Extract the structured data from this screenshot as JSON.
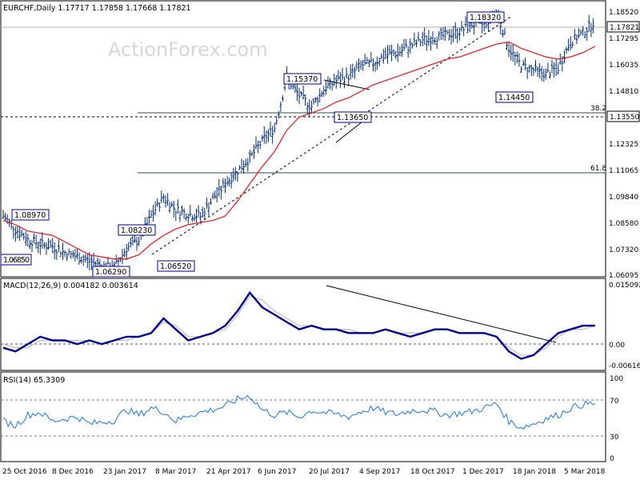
{
  "header": {
    "main_title": "EURCHF,Daily  1.17717 1.17858 1.17668 1.17821",
    "macd_title": "MACD(12,26,9) 0.004182 0.003614",
    "rsi_title": "RSI(14) 65.3309",
    "watermark": "ActionForex.com"
  },
  "chart_data": [
    {
      "type": "line",
      "name": "price",
      "y_ticks": [
        "1.18520",
        "1.17295",
        "1.16035",
        "1.14810",
        "1.13550",
        "1.12325",
        "1.11065",
        "1.09840",
        "1.08580",
        "1.07320",
        "1.06095"
      ],
      "ylim": [
        1.0595,
        1.186
      ],
      "current_price_label": "1.17821",
      "current_price": 1.17821,
      "level_label": "1.13550",
      "level_value": 1.1355,
      "fib_levels": [
        {
          "label": "38.2",
          "value": 1.137
        },
        {
          "label": "61.8",
          "value": 1.1107
        }
      ],
      "annotations": [
        {
          "label": "1.08970",
          "value": 1.0897
        },
        {
          "label": "1.06850",
          "value": 1.0685
        },
        {
          "label": "1.08230",
          "value": 1.0823
        },
        {
          "label": "1.06290",
          "value": 1.0629
        },
        {
          "label": "1.06520",
          "value": 1.0652
        },
        {
          "label": "1.15370",
          "value": 1.1537
        },
        {
          "label": "1.13650",
          "value": 1.1365
        },
        {
          "label": "1.18320",
          "value": 1.1832
        },
        {
          "label": "1.14450",
          "value": 1.1445
        }
      ],
      "x_ticks": [
        "25 Oct 2016",
        "8 Dec 2016",
        "23 Jan 2017",
        "8 Mar 2017",
        "21 Apr 2017",
        "6 Jun 2017",
        "20 Jul 2017",
        "4 Sep 2017",
        "18 Oct 2017",
        "1 Dec 2017",
        "18 Jan 2018",
        "5 Mar 2018"
      ],
      "series": [
        {
          "values": [
            1.087,
            1.081,
            1.076,
            1.074,
            1.073,
            1.07,
            1.068,
            1.066,
            1.064,
            1.063,
            1.072,
            1.076,
            1.087,
            1.096,
            1.09,
            1.088,
            1.087,
            1.095,
            1.102,
            1.108,
            1.114,
            1.122,
            1.128,
            1.151,
            1.143,
            1.138,
            1.146,
            1.15,
            1.152,
            1.157,
            1.158,
            1.162,
            1.163,
            1.166,
            1.169,
            1.17,
            1.171,
            1.173,
            1.176,
            1.176,
            1.182,
            1.165,
            1.157,
            1.155,
            1.153,
            1.156,
            1.168,
            1.172,
            1.178
          ]
        },
        {
          "values": [
            1.085,
            1.083,
            1.08,
            1.079,
            1.078,
            1.075,
            1.072,
            1.069,
            1.068,
            1.067,
            1.067,
            1.069,
            1.074,
            1.078,
            1.081,
            1.083,
            1.084,
            1.085,
            1.087,
            1.094,
            1.102,
            1.11,
            1.117,
            1.127,
            1.133,
            1.135,
            1.137,
            1.14,
            1.142,
            1.145,
            1.148,
            1.15,
            1.152,
            1.154,
            1.156,
            1.158,
            1.16,
            1.161,
            1.163,
            1.165,
            1.167,
            1.168,
            1.165,
            1.163,
            1.161,
            1.16,
            1.161,
            1.163,
            1.166
          ]
        }
      ]
    },
    {
      "type": "line",
      "name": "macd",
      "y_ticks": [
        "0.015092",
        "0.00",
        "-0.006163"
      ],
      "ylim": [
        -0.0075,
        0.016
      ],
      "series": [
        {
          "values": [
            -0.002,
            -0.003,
            -0.001,
            0.001,
            0.0,
            0.0,
            -0.001,
            0.0,
            -0.001,
            0.0,
            0.001,
            0.001,
            0.002,
            0.006,
            0.003,
            0.0,
            0.001,
            0.002,
            0.004,
            0.008,
            0.013,
            0.009,
            0.007,
            0.005,
            0.003,
            0.004,
            0.003,
            0.003,
            0.002,
            0.002,
            0.002,
            0.003,
            0.002,
            0.001,
            0.002,
            0.003,
            0.003,
            0.002,
            0.002,
            0.002,
            0.001,
            -0.003,
            -0.005,
            -0.004,
            -0.001,
            0.002,
            0.003,
            0.004,
            0.004
          ]
        },
        {
          "values": [
            -0.001,
            -0.002,
            -0.002,
            0.0,
            0.0,
            0.0,
            0.0,
            0.0,
            -0.001,
            0.0,
            0.0,
            0.001,
            0.002,
            0.005,
            0.004,
            0.001,
            0.001,
            0.002,
            0.003,
            0.007,
            0.012,
            0.011,
            0.008,
            0.006,
            0.004,
            0.004,
            0.003,
            0.003,
            0.003,
            0.002,
            0.002,
            0.003,
            0.002,
            0.002,
            0.002,
            0.003,
            0.003,
            0.002,
            0.002,
            0.002,
            0.001,
            -0.002,
            -0.004,
            -0.004,
            -0.002,
            0.001,
            0.003,
            0.003,
            0.004
          ]
        }
      ]
    },
    {
      "type": "line",
      "name": "rsi",
      "y_ticks": [
        "70",
        "30",
        "0",
        "100"
      ],
      "ylim": [
        0,
        100
      ],
      "series": [
        {
          "values": [
            45,
            40,
            52,
            55,
            45,
            48,
            50,
            42,
            44,
            46,
            58,
            52,
            60,
            56,
            45,
            52,
            55,
            58,
            62,
            70,
            74,
            58,
            52,
            55,
            50,
            57,
            55,
            53,
            50,
            56,
            60,
            55,
            53,
            57,
            58,
            56,
            52,
            54,
            56,
            60,
            65,
            45,
            38,
            42,
            48,
            52,
            60,
            64,
            65
          ]
        }
      ]
    }
  ],
  "colors": {
    "price": "#002b7a",
    "ma": "#e0252b",
    "macd": "#000090",
    "signal": "#c0c0c0",
    "rsi": "#1a73e8"
  }
}
